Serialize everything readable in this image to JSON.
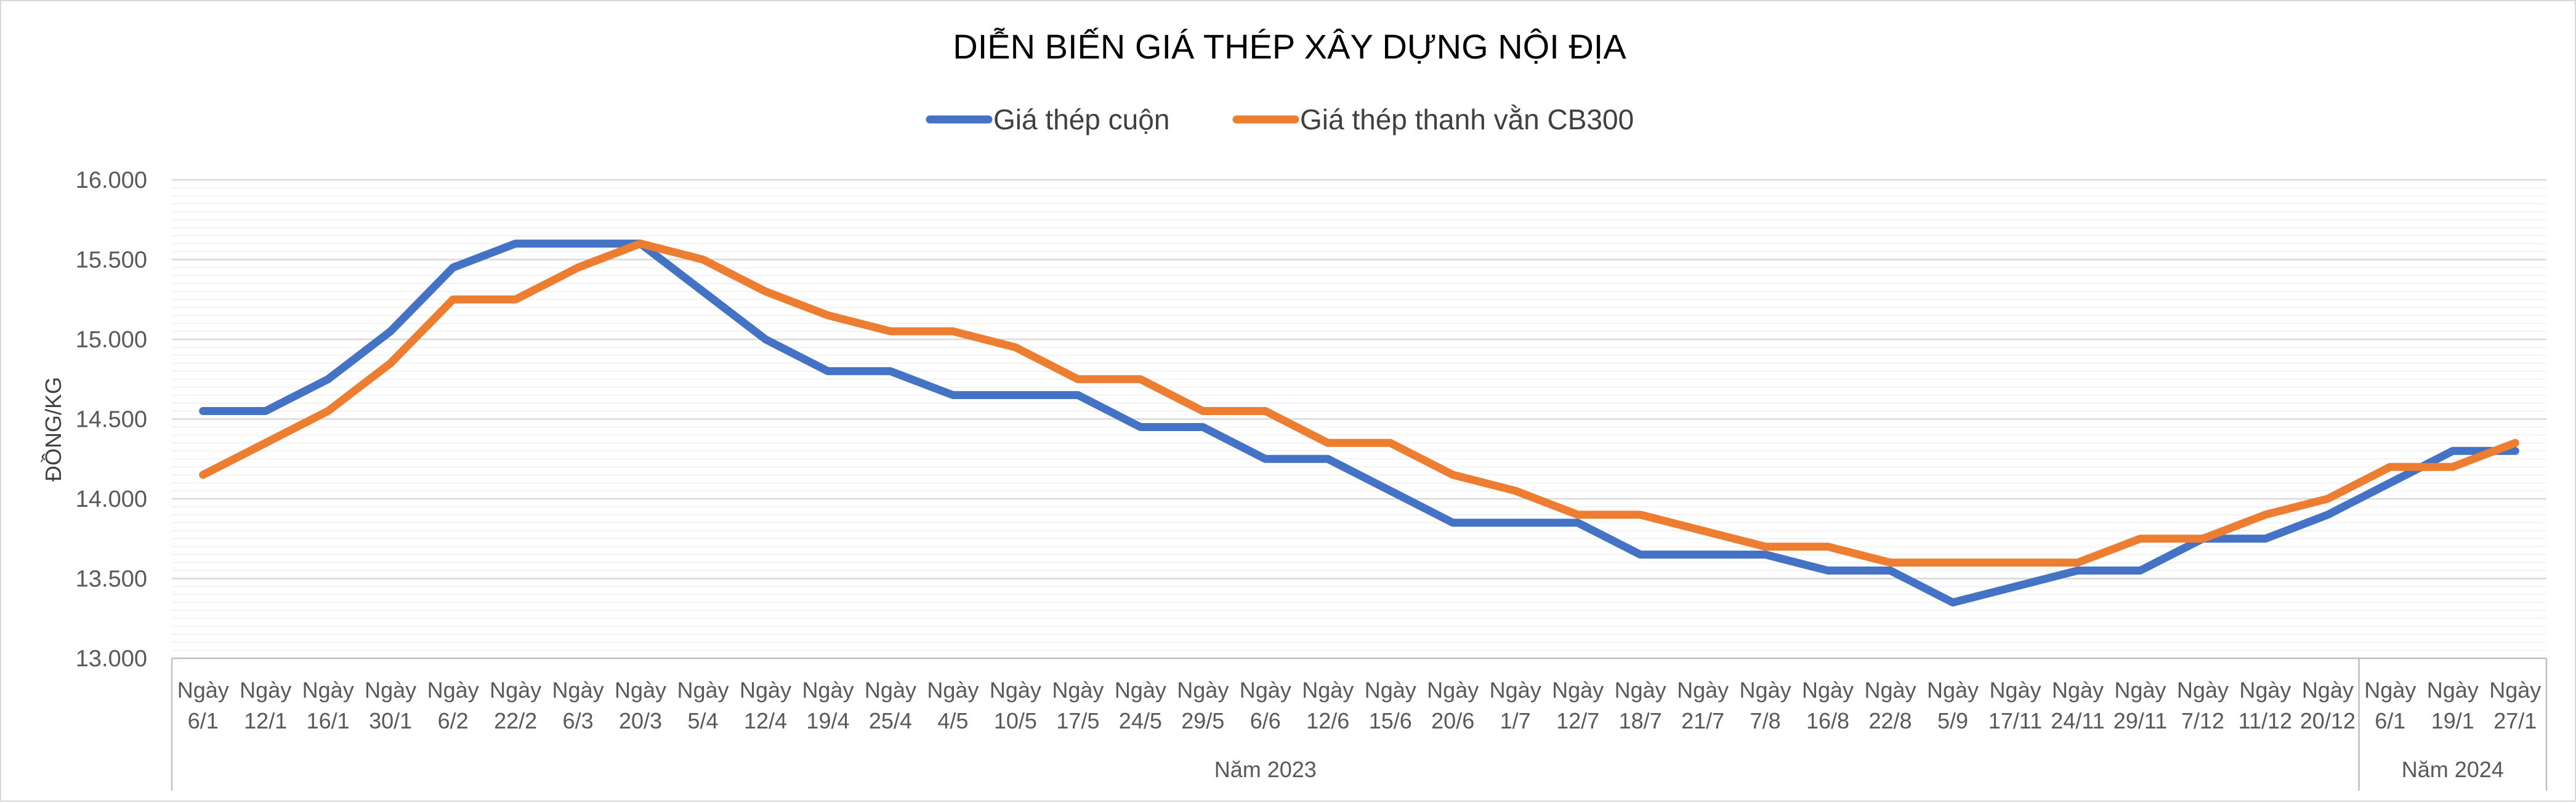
{
  "chart_data": {
    "type": "line",
    "title": "DIỄN BIẾN GIÁ THÉP XÂY DỰNG NỘI ĐỊA",
    "ylabel": "ĐỒNG/KG",
    "xlabel": "",
    "ylim": [
      13000,
      16000
    ],
    "ytick_values": [
      13000,
      13500,
      14000,
      14500,
      15000,
      15500,
      16000
    ],
    "ytick_labels": [
      "13.000",
      "13.500",
      "14.000",
      "14.500",
      "15.000",
      "15.500",
      "16.000"
    ],
    "legend_position": "top-center",
    "categories": [
      [
        "Ngày",
        "6/1"
      ],
      [
        "Ngày",
        "12/1"
      ],
      [
        "Ngày",
        "16/1"
      ],
      [
        "Ngày",
        "30/1"
      ],
      [
        "Ngày",
        "6/2"
      ],
      [
        "Ngày",
        "22/2"
      ],
      [
        "Ngày",
        "6/3"
      ],
      [
        "Ngày",
        "20/3"
      ],
      [
        "Ngày",
        "5/4"
      ],
      [
        "Ngày",
        "12/4"
      ],
      [
        "Ngày",
        "19/4"
      ],
      [
        "Ngày",
        "25/4"
      ],
      [
        "Ngày",
        "4/5"
      ],
      [
        "Ngày",
        "10/5"
      ],
      [
        "Ngày",
        "17/5"
      ],
      [
        "Ngày",
        "24/5"
      ],
      [
        "Ngày",
        "29/5"
      ],
      [
        "Ngày",
        "6/6"
      ],
      [
        "Ngày",
        "12/6"
      ],
      [
        "Ngày",
        "15/6"
      ],
      [
        "Ngày",
        "20/6"
      ],
      [
        "Ngày",
        "1/7"
      ],
      [
        "Ngày",
        "12/7"
      ],
      [
        "Ngày",
        "18/7"
      ],
      [
        "Ngày",
        "21/7"
      ],
      [
        "Ngày",
        "7/8"
      ],
      [
        "Ngày",
        "16/8"
      ],
      [
        "Ngày",
        "22/8"
      ],
      [
        "Ngày",
        "5/9"
      ],
      [
        "Ngày",
        "17/11"
      ],
      [
        "Ngày",
        "24/11"
      ],
      [
        "Ngày",
        "29/11"
      ],
      [
        "Ngày",
        "7/12"
      ],
      [
        "Ngày",
        "11/12"
      ],
      [
        "Ngày",
        "20/12"
      ],
      [
        "Ngày",
        "6/1"
      ],
      [
        "Ngày",
        "19/1"
      ],
      [
        "Ngày",
        "27/1"
      ]
    ],
    "groups": [
      {
        "label": "Năm 2023",
        "start": 0,
        "end": 34
      },
      {
        "label": "Năm 2024",
        "start": 35,
        "end": 37
      }
    ],
    "series": [
      {
        "name": "Giá thép cuộn",
        "color": "#4472C4",
        "values": [
          14550,
          14550,
          14750,
          15050,
          15450,
          15600,
          15600,
          15600,
          15300,
          15000,
          14800,
          14800,
          14650,
          14650,
          14650,
          14450,
          14450,
          14250,
          14250,
          14050,
          13850,
          13850,
          13850,
          13650,
          13650,
          13650,
          13550,
          13550,
          13350,
          13450,
          13550,
          13550,
          13750,
          13750,
          13900,
          14100,
          14300,
          14300
        ]
      },
      {
        "name": "Giá thép thanh vằn CB300",
        "color": "#ED7D31",
        "values": [
          14150,
          14350,
          14550,
          14850,
          15250,
          15250,
          15450,
          15600,
          15500,
          15300,
          15150,
          15050,
          15050,
          14950,
          14750,
          14750,
          14550,
          14550,
          14350,
          14350,
          14150,
          14050,
          13900,
          13900,
          13800,
          13700,
          13700,
          13600,
          13600,
          13600,
          13600,
          13750,
          13750,
          13900,
          14000,
          14200,
          14200,
          14350
        ]
      }
    ]
  }
}
